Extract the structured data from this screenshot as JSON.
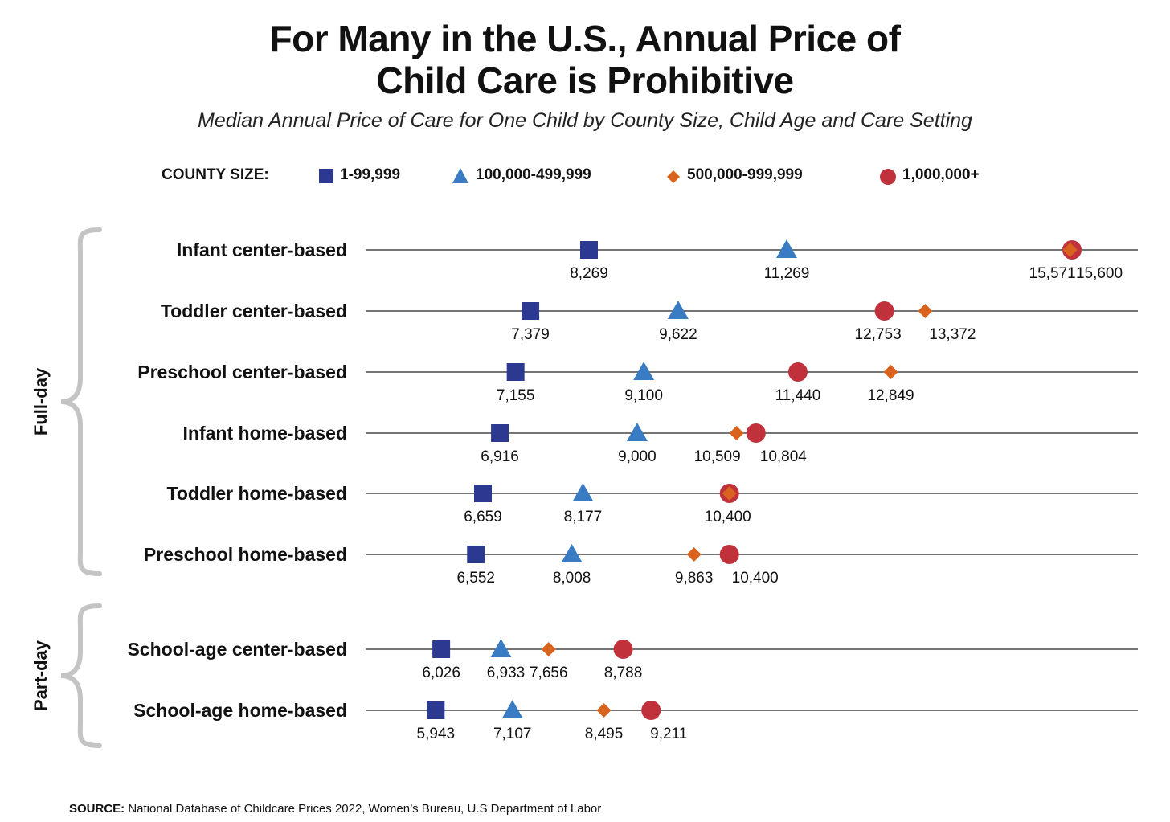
{
  "title_line1": "For Many in the U.S., Annual Price of",
  "title_line2": "Child Care is Prohibitive",
  "subtitle": "Median Annual Price of Care for One Child by County Size, Child Age and Care Setting",
  "legend_title": "COUNTY SIZE:",
  "source_label": "SOURCE:",
  "source_text": " National Database of Childcare Prices 2022, Women’s Bureau, U.S Department of Labor",
  "colors": {
    "s1": "#2b3990",
    "s2": "#3a7cc4",
    "s3": "#d9631e",
    "s4": "#c0313c",
    "line": "#222222",
    "brace": "#c4c4c4"
  },
  "chart_data": {
    "type": "scatter",
    "title": "For Many in the U.S., Annual Price of Child Care is Prohibitive",
    "subtitle": "Median Annual Price of Care for One Child by County Size, Child Age and Care Setting",
    "legend_placement": "top",
    "grid": false,
    "groups": [
      {
        "name": "Full-day",
        "rows": [
          0,
          1,
          2,
          3,
          4,
          5
        ]
      },
      {
        "name": "Part-day",
        "rows": [
          6,
          7
        ]
      }
    ],
    "categories": [
      "Infant center-based",
      "Toddler center-based",
      "Preschool center-based",
      "Infant home-based",
      "Toddler home-based",
      "Preschool home-based",
      "School-age center-based",
      "School-age home-based"
    ],
    "series": [
      {
        "name": "1-99,999",
        "marker": "square",
        "color": "#2b3990",
        "values": [
          8269,
          7379,
          7155,
          6916,
          6659,
          6552,
          6026,
          5943
        ],
        "labels": [
          "8,269",
          "7,379",
          "7,155",
          "6,916",
          "6,659",
          "6,552",
          "6,026",
          "5,943"
        ]
      },
      {
        "name": "100,000-499,999",
        "marker": "triangle",
        "color": "#3a7cc4",
        "values": [
          11269,
          9622,
          9100,
          9000,
          8177,
          8008,
          6933,
          7107
        ],
        "labels": [
          "11,269",
          "9,622",
          "9,100",
          "9,000",
          "8,177",
          "8,008",
          "6,933",
          "7,107"
        ]
      },
      {
        "name": "500,000-999,999",
        "marker": "diamond",
        "color": "#d9631e",
        "values": [
          15571,
          13372,
          12849,
          10509,
          10400,
          9863,
          7656,
          8495
        ],
        "labels": [
          "15,571",
          "13,372",
          "12,849",
          "10,509",
          "",
          "9,863",
          "7,656",
          "8,495"
        ]
      },
      {
        "name": "1,000,000+",
        "marker": "circle",
        "color": "#c0313c",
        "values": [
          15600,
          12753,
          11440,
          10804,
          10400,
          10400,
          8788,
          9211
        ],
        "labels": [
          "15,600",
          "12,753",
          "11,440",
          "10,804",
          "10,400",
          "10,400",
          "8,788",
          "9,211"
        ]
      }
    ]
  }
}
